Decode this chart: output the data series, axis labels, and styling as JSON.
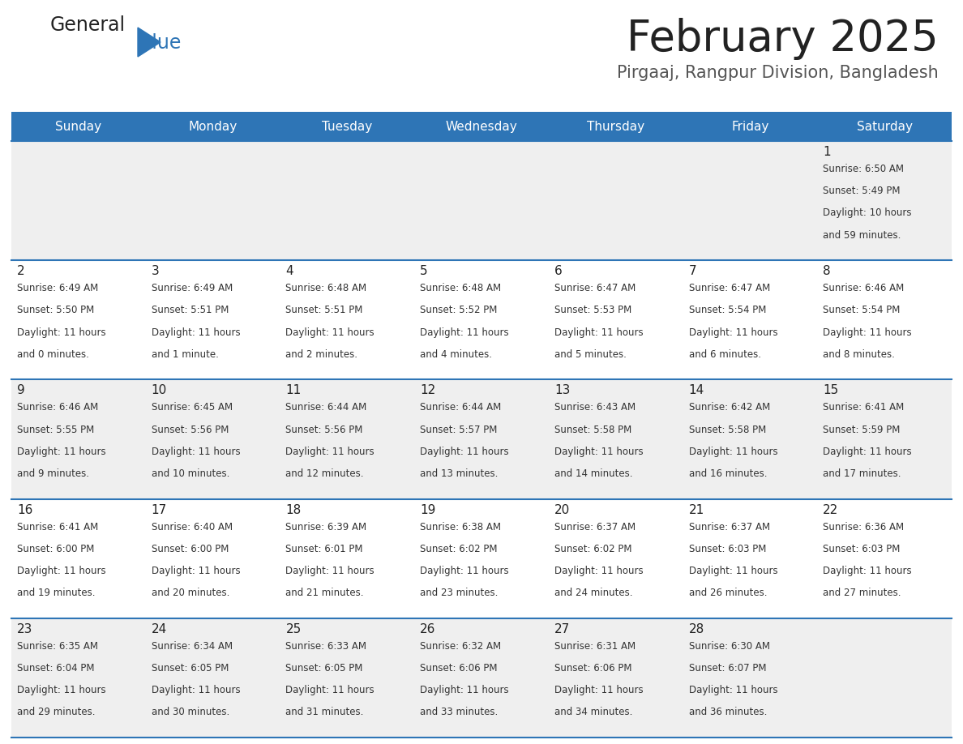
{
  "title": "February 2025",
  "subtitle": "Pirgaaj, Rangpur Division, Bangladesh",
  "days_of_week": [
    "Sunday",
    "Monday",
    "Tuesday",
    "Wednesday",
    "Thursday",
    "Friday",
    "Saturday"
  ],
  "header_bg": "#2E75B6",
  "header_text": "#FFFFFF",
  "row_bg_odd": "#EFEFEF",
  "row_bg_even": "#FFFFFF",
  "cell_text_color": "#333333",
  "day_num_color": "#222222",
  "divider_color": "#2E75B6",
  "logo_general_color": "#222222",
  "logo_blue_color": "#2E75B6",
  "title_color": "#222222",
  "subtitle_color": "#555555",
  "calendar_data": [
    [
      {
        "day": null
      },
      {
        "day": null
      },
      {
        "day": null
      },
      {
        "day": null
      },
      {
        "day": null
      },
      {
        "day": null
      },
      {
        "day": 1,
        "sunrise": "6:50 AM",
        "sunset": "5:49 PM",
        "daylight_h": "10 hours",
        "daylight_m": "and 59 minutes."
      }
    ],
    [
      {
        "day": 2,
        "sunrise": "6:49 AM",
        "sunset": "5:50 PM",
        "daylight_h": "11 hours",
        "daylight_m": "and 0 minutes."
      },
      {
        "day": 3,
        "sunrise": "6:49 AM",
        "sunset": "5:51 PM",
        "daylight_h": "11 hours",
        "daylight_m": "and 1 minute."
      },
      {
        "day": 4,
        "sunrise": "6:48 AM",
        "sunset": "5:51 PM",
        "daylight_h": "11 hours",
        "daylight_m": "and 2 minutes."
      },
      {
        "day": 5,
        "sunrise": "6:48 AM",
        "sunset": "5:52 PM",
        "daylight_h": "11 hours",
        "daylight_m": "and 4 minutes."
      },
      {
        "day": 6,
        "sunrise": "6:47 AM",
        "sunset": "5:53 PM",
        "daylight_h": "11 hours",
        "daylight_m": "and 5 minutes."
      },
      {
        "day": 7,
        "sunrise": "6:47 AM",
        "sunset": "5:54 PM",
        "daylight_h": "11 hours",
        "daylight_m": "and 6 minutes."
      },
      {
        "day": 8,
        "sunrise": "6:46 AM",
        "sunset": "5:54 PM",
        "daylight_h": "11 hours",
        "daylight_m": "and 8 minutes."
      }
    ],
    [
      {
        "day": 9,
        "sunrise": "6:46 AM",
        "sunset": "5:55 PM",
        "daylight_h": "11 hours",
        "daylight_m": "and 9 minutes."
      },
      {
        "day": 10,
        "sunrise": "6:45 AM",
        "sunset": "5:56 PM",
        "daylight_h": "11 hours",
        "daylight_m": "and 10 minutes."
      },
      {
        "day": 11,
        "sunrise": "6:44 AM",
        "sunset": "5:56 PM",
        "daylight_h": "11 hours",
        "daylight_m": "and 12 minutes."
      },
      {
        "day": 12,
        "sunrise": "6:44 AM",
        "sunset": "5:57 PM",
        "daylight_h": "11 hours",
        "daylight_m": "and 13 minutes."
      },
      {
        "day": 13,
        "sunrise": "6:43 AM",
        "sunset": "5:58 PM",
        "daylight_h": "11 hours",
        "daylight_m": "and 14 minutes."
      },
      {
        "day": 14,
        "sunrise": "6:42 AM",
        "sunset": "5:58 PM",
        "daylight_h": "11 hours",
        "daylight_m": "and 16 minutes."
      },
      {
        "day": 15,
        "sunrise": "6:41 AM",
        "sunset": "5:59 PM",
        "daylight_h": "11 hours",
        "daylight_m": "and 17 minutes."
      }
    ],
    [
      {
        "day": 16,
        "sunrise": "6:41 AM",
        "sunset": "6:00 PM",
        "daylight_h": "11 hours",
        "daylight_m": "and 19 minutes."
      },
      {
        "day": 17,
        "sunrise": "6:40 AM",
        "sunset": "6:00 PM",
        "daylight_h": "11 hours",
        "daylight_m": "and 20 minutes."
      },
      {
        "day": 18,
        "sunrise": "6:39 AM",
        "sunset": "6:01 PM",
        "daylight_h": "11 hours",
        "daylight_m": "and 21 minutes."
      },
      {
        "day": 19,
        "sunrise": "6:38 AM",
        "sunset": "6:02 PM",
        "daylight_h": "11 hours",
        "daylight_m": "and 23 minutes."
      },
      {
        "day": 20,
        "sunrise": "6:37 AM",
        "sunset": "6:02 PM",
        "daylight_h": "11 hours",
        "daylight_m": "and 24 minutes."
      },
      {
        "day": 21,
        "sunrise": "6:37 AM",
        "sunset": "6:03 PM",
        "daylight_h": "11 hours",
        "daylight_m": "and 26 minutes."
      },
      {
        "day": 22,
        "sunrise": "6:36 AM",
        "sunset": "6:03 PM",
        "daylight_h": "11 hours",
        "daylight_m": "and 27 minutes."
      }
    ],
    [
      {
        "day": 23,
        "sunrise": "6:35 AM",
        "sunset": "6:04 PM",
        "daylight_h": "11 hours",
        "daylight_m": "and 29 minutes."
      },
      {
        "day": 24,
        "sunrise": "6:34 AM",
        "sunset": "6:05 PM",
        "daylight_h": "11 hours",
        "daylight_m": "and 30 minutes."
      },
      {
        "day": 25,
        "sunrise": "6:33 AM",
        "sunset": "6:05 PM",
        "daylight_h": "11 hours",
        "daylight_m": "and 31 minutes."
      },
      {
        "day": 26,
        "sunrise": "6:32 AM",
        "sunset": "6:06 PM",
        "daylight_h": "11 hours",
        "daylight_m": "and 33 minutes."
      },
      {
        "day": 27,
        "sunrise": "6:31 AM",
        "sunset": "6:06 PM",
        "daylight_h": "11 hours",
        "daylight_m": "and 34 minutes."
      },
      {
        "day": 28,
        "sunrise": "6:30 AM",
        "sunset": "6:07 PM",
        "daylight_h": "11 hours",
        "daylight_m": "and 36 minutes."
      },
      {
        "day": null
      }
    ]
  ]
}
